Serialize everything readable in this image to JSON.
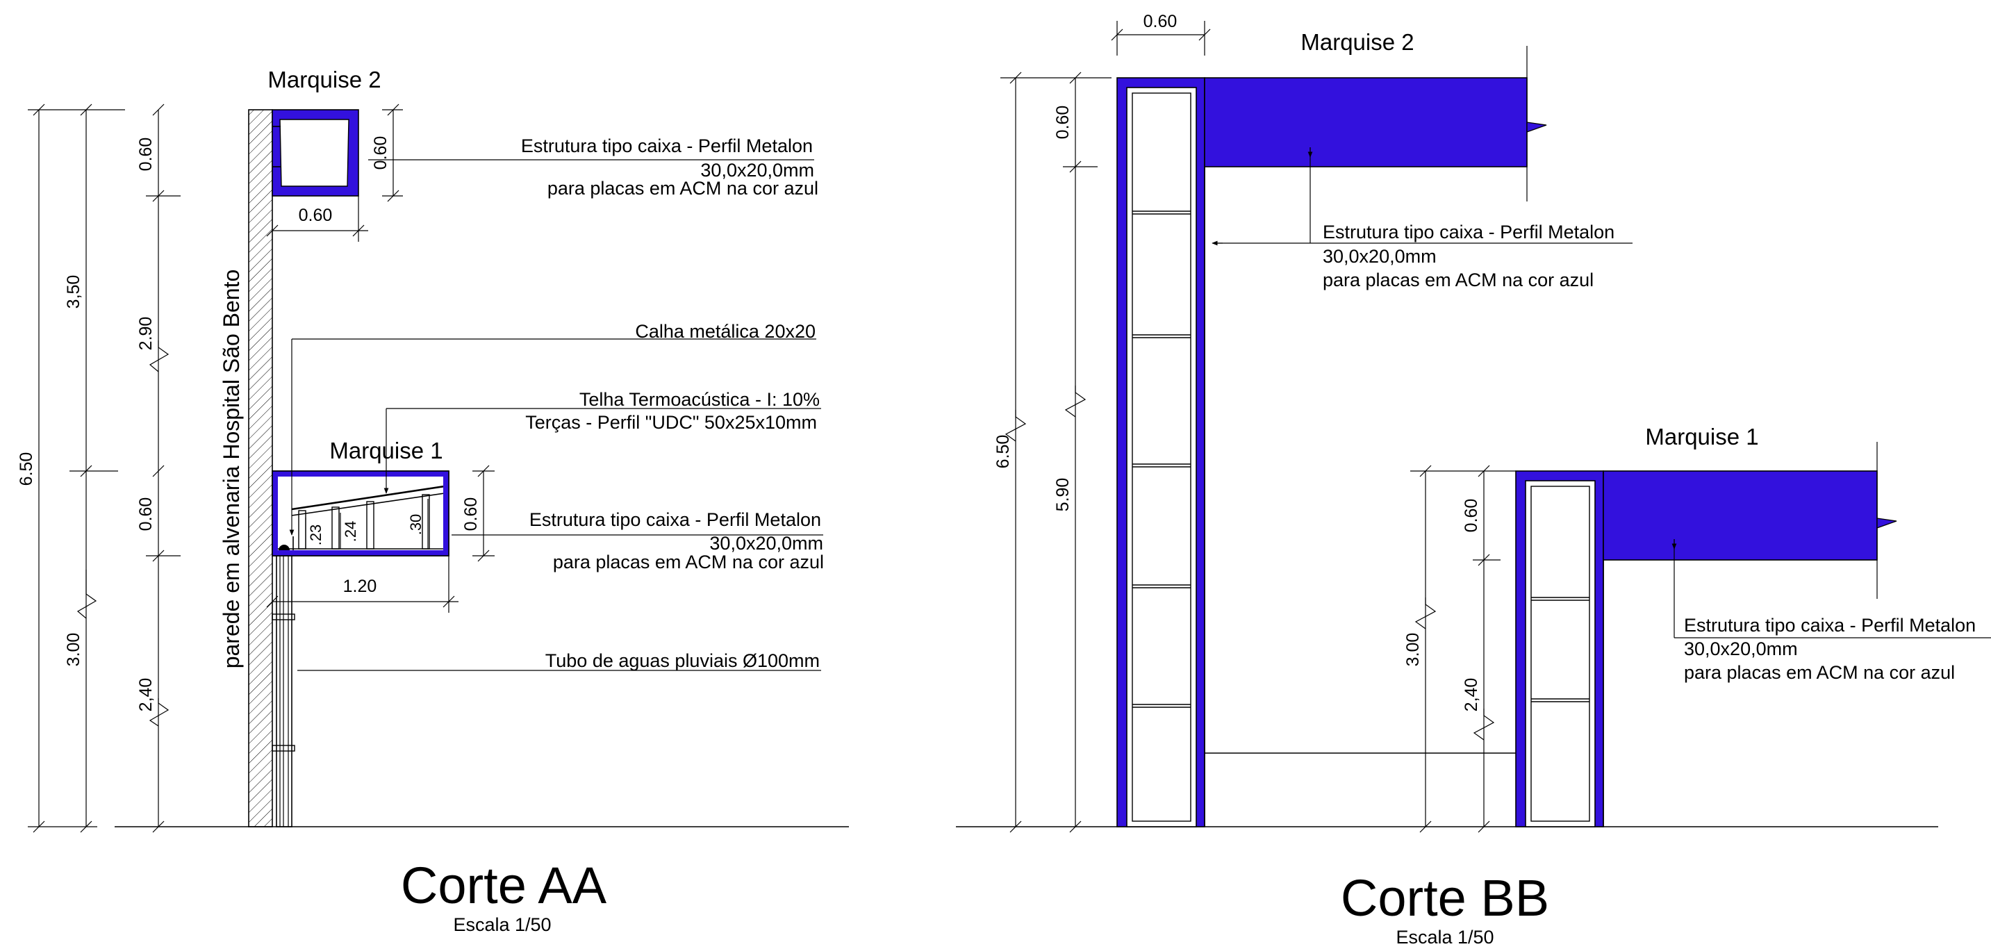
{
  "corte_aa": {
    "title": "Corte AA",
    "scale": "Escala 1/50",
    "wall_label": "parede em alvenaria Hospital São Bento",
    "marquise2_label": "Marquise 2",
    "marquise1_label": "Marquise 1",
    "dims": {
      "total": "6.50",
      "upper": "3,50",
      "lower": "3.00",
      "m2_height": "0.60",
      "m2_height_right": "0.60",
      "m2_width": "0.60",
      "mid": "2.90",
      "m1_height": "0.60",
      "m1_height_right": "0.60",
      "base": "2,40",
      "m1_width": "1.20",
      "d23": ".23",
      "d24": ".24",
      "d30": ".30"
    },
    "notes": {
      "m2_line1": "Estrutura tipo caixa - Perfil Metalon",
      "m2_line2": "30,0x20,0mm",
      "m2_line3": "para placas em ACM na cor azul",
      "calha": "Calha metálica 20x20",
      "telha": "Telha Termoacústica - I: 10%",
      "tercas": "Terças - Perfil \"UDC\" 50x25x10mm",
      "m1_line1": "Estrutura tipo caixa - Perfil Metalon",
      "m1_line2": "30,0x20,0mm",
      "m1_line3": "para placas em ACM na cor azul",
      "tubo": "Tubo de aguas pluviais Ø100mm"
    }
  },
  "corte_bb": {
    "title": "Corte BB",
    "scale": "Escala 1/50",
    "marquise2_label": "Marquise 2",
    "marquise1_label": "Marquise 1",
    "dims": {
      "top_width": "0.60",
      "total": "6.50",
      "m2_height": "0.60",
      "col2_height": "5.90",
      "lower": "3.00",
      "m1_height": "0.60",
      "base": "2,40"
    },
    "notes": {
      "m2_line1": "Estrutura tipo caixa - Perfil Metalon",
      "m2_line2": "30,0x20,0mm",
      "m2_line3": "para placas em ACM na cor azul",
      "m1_line1": "Estrutura tipo caixa - Perfil Metalon",
      "m1_line2": "30,0x20,0mm",
      "m1_line3": "para placas em ACM na cor azul"
    }
  },
  "colors": {
    "acm_blue": "#3311dd",
    "line": "#000000",
    "background": "#ffffff"
  }
}
